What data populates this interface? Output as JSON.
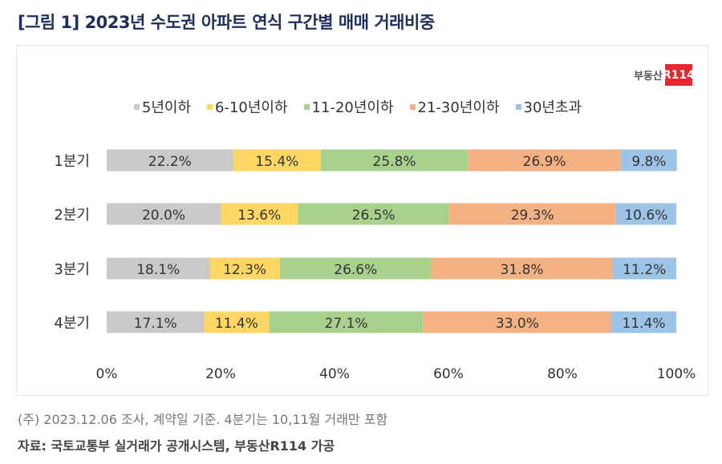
{
  "title": "[그림 1] 2023년 수도권 아파트 연식 구간별 매매 거래비중",
  "logo": {
    "text": "부동산",
    "badge": "R114",
    "color": "#e8262d"
  },
  "note": "(주) 2023.12.06 조사, 계약일 기준. 4분기는 10,11월 거래만 포함",
  "source": "자료: 국토교통부 실거래가 공개시스템, 부동산R114 가공",
  "chart_data": {
    "type": "bar",
    "orientation": "horizontal",
    "stacked": true,
    "title": "[그림 1] 2023년 수도권 아파트 연식 구간별 매매 거래비중",
    "categories": [
      "1분기",
      "2분기",
      "3분기",
      "4분기"
    ],
    "series": [
      {
        "name": "5년이하",
        "color": "#c9c9c9",
        "values": [
          22.2,
          20.0,
          18.1,
          17.1
        ],
        "labels": [
          "22.2%",
          "20.0%",
          "18.1%",
          "17.1%"
        ]
      },
      {
        "name": "6-10년이하",
        "color": "#fdd663",
        "values": [
          15.4,
          13.6,
          12.3,
          11.4
        ],
        "labels": [
          "15.4%",
          "13.6%",
          "12.3%",
          "11.4%"
        ]
      },
      {
        "name": "11-20년이하",
        "color": "#a9d18e",
        "values": [
          25.8,
          26.5,
          26.6,
          27.1
        ],
        "labels": [
          "25.8%",
          "26.5%",
          "26.6%",
          "27.1%"
        ]
      },
      {
        "name": "21-30년이하",
        "color": "#f4b183",
        "values": [
          26.9,
          29.3,
          31.8,
          33.0
        ],
        "labels": [
          "26.9%",
          "29.3%",
          "31.8%",
          "33.0%"
        ]
      },
      {
        "name": "30년초과",
        "color": "#9dc3e6",
        "values": [
          9.8,
          10.6,
          11.2,
          11.4
        ],
        "labels": [
          "9.8%",
          "10.6%",
          "11.2%",
          "11.4%"
        ]
      }
    ],
    "xlim": [
      0,
      100
    ],
    "xticks": [
      "0%",
      "20%",
      "40%",
      "60%",
      "80%",
      "100%"
    ],
    "legend": "top",
    "grid": false
  }
}
